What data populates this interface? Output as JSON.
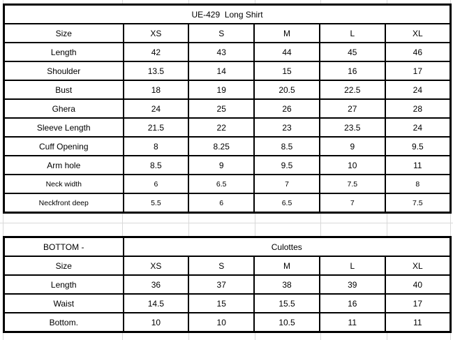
{
  "style": {
    "background": "#ffffff",
    "table_border_color": "#000000",
    "gridline_color": "#d9d9d9",
    "text_color": "#000000"
  },
  "shirt_table": {
    "title": "UE-429  Long Shirt",
    "columns": [
      "Size",
      "XS",
      "S",
      "M",
      "L",
      "XL"
    ],
    "rows": [
      {
        "label": "Length",
        "values": [
          "42",
          "43",
          "44",
          "45",
          "46"
        ],
        "small": false
      },
      {
        "label": "Shoulder",
        "values": [
          "13.5",
          "14",
          "15",
          "16",
          "17"
        ],
        "small": false
      },
      {
        "label": "Bust",
        "values": [
          "18",
          "19",
          "20.5",
          "22.5",
          "24"
        ],
        "small": false
      },
      {
        "label": "Ghera",
        "values": [
          "24",
          "25",
          "26",
          "27",
          "28"
        ],
        "small": false
      },
      {
        "label": "Sleeve Length",
        "values": [
          "21.5",
          "22",
          "23",
          "23.5",
          "24"
        ],
        "small": false
      },
      {
        "label": "Cuff Opening",
        "values": [
          "8",
          "8.25",
          "8.5",
          "9",
          "9.5"
        ],
        "small": false
      },
      {
        "label": "Arm hole",
        "values": [
          "8.5",
          "9",
          "9.5",
          "10",
          "11"
        ],
        "small": false
      },
      {
        "label": "Neck width",
        "values": [
          "6",
          "6.5",
          "7",
          "7.5",
          "8"
        ],
        "small": true
      },
      {
        "label": "Neckfront deep",
        "values": [
          "5.5",
          "6",
          "6.5",
          "7",
          "7.5"
        ],
        "small": true
      }
    ]
  },
  "culottes_table": {
    "left_header": "BOTTOM -",
    "right_header": "Culottes",
    "columns": [
      "Size",
      "XS",
      "S",
      "M",
      "L",
      "XL"
    ],
    "rows": [
      {
        "label": "Length",
        "values": [
          "36",
          "37",
          "38",
          "39",
          "40"
        ],
        "small": false
      },
      {
        "label": "Waist",
        "values": [
          "14.5",
          "15",
          "15.5",
          "16",
          "17"
        ],
        "small": false
      },
      {
        "label": "Bottom.",
        "values": [
          "10",
          "10",
          "10.5",
          "11",
          "11"
        ],
        "small": false
      }
    ]
  }
}
